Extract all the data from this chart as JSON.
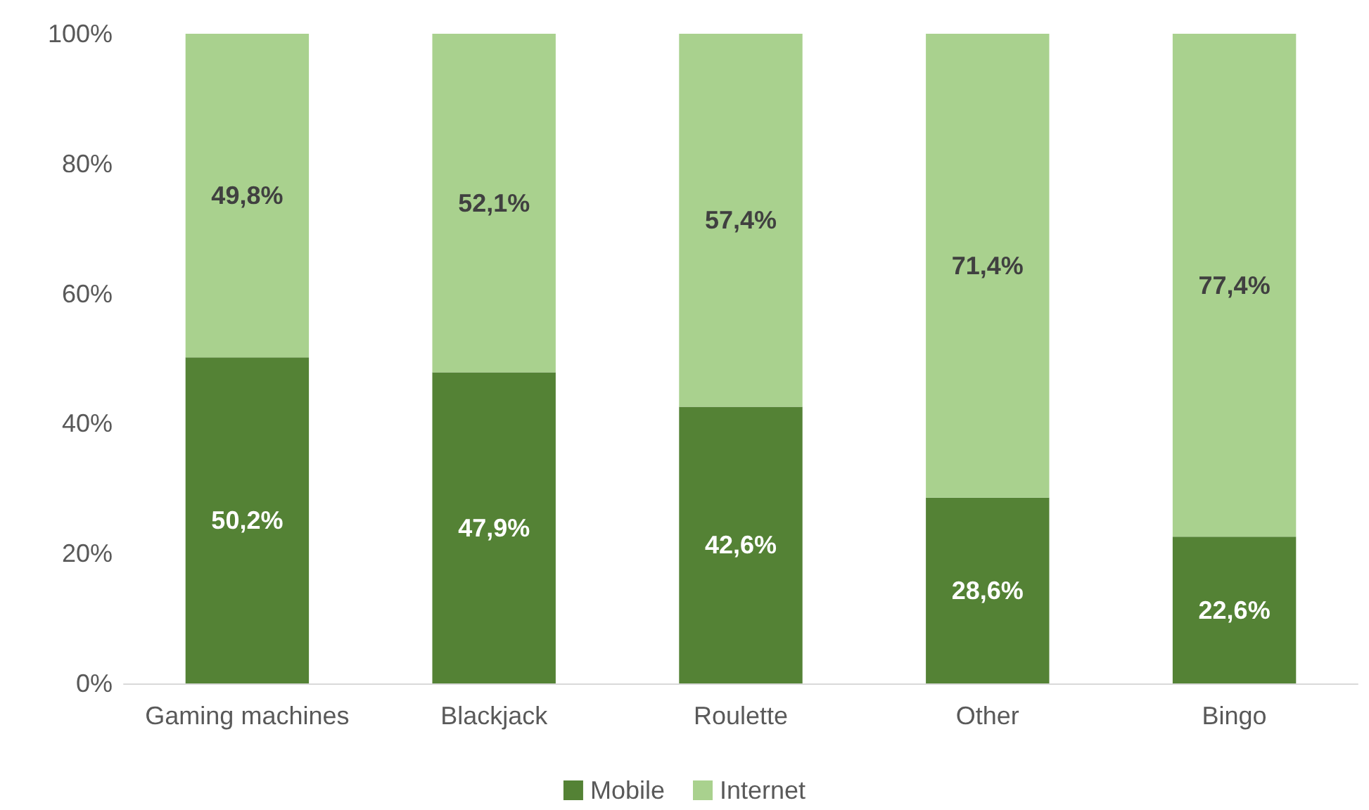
{
  "chart_data": {
    "type": "bar",
    "stacked": true,
    "categories": [
      "Gaming machines",
      "Blackjack",
      "Roulette",
      "Other",
      "Bingo"
    ],
    "series": [
      {
        "name": "Mobile",
        "color": "#548235",
        "values": [
          50.2,
          47.9,
          42.6,
          28.6,
          22.6
        ],
        "value_labels": [
          "50,2%",
          "47,9%",
          "42,6%",
          "28,6%",
          "22,6%"
        ]
      },
      {
        "name": "Internet",
        "color": "#a9d18e",
        "values": [
          49.8,
          52.1,
          57.4,
          71.4,
          77.4
        ],
        "value_labels": [
          "49,8%",
          "52,1%",
          "57,4%",
          "71,4%",
          "77,4%"
        ]
      }
    ],
    "ylim": [
      0,
      100
    ],
    "yticks": [
      {
        "value": 0,
        "label": "0%"
      },
      {
        "value": 20,
        "label": "20%"
      },
      {
        "value": 40,
        "label": "40%"
      },
      {
        "value": 60,
        "label": "60%"
      },
      {
        "value": 80,
        "label": "80%"
      },
      {
        "value": 100,
        "label": "100%"
      }
    ],
    "grid": false,
    "legend": "bottom"
  }
}
